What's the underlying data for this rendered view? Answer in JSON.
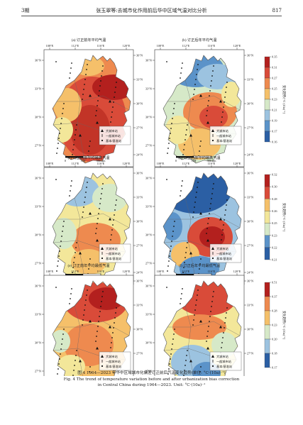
{
  "header": {
    "issue": "3期",
    "title": "张玉翠等:去城市化作用前后华中区域气温对比分析",
    "page": "817"
  },
  "panels": [
    {
      "label": "(a) 订正前年平均气温",
      "cbar": false
    },
    {
      "label": "(b) 订正后年平均气温",
      "cbar": true,
      "ticks": [
        "0.35",
        "0.31",
        "0.27",
        "0.25",
        "0.23",
        "0.21",
        "0.19",
        "0.17",
        "0.16"
      ]
    },
    {
      "label": "(c) 订正前年平均最高气温",
      "cbar": false
    },
    {
      "label": "(d) 订正后年平均最高气温",
      "cbar": true,
      "ticks": [
        "0.32",
        "0.30",
        "0.28",
        "0.26",
        "0.25",
        "0.23",
        "0.22",
        "0.21"
      ]
    },
    {
      "label": "(e) 订正前年平均最低气温",
      "cbar": false
    },
    {
      "label": "(f) 订正后年平均最低气温",
      "cbar": true,
      "ticks": [
        "0.51",
        "0.37",
        "0.28",
        "0.23",
        "0.20",
        "0.18",
        "0.17"
      ]
    }
  ],
  "lon_ticks": [
    "108°E",
    "112°E",
    "116°E",
    "120°E"
  ],
  "lat_left": [
    "36°N",
    "33°N",
    "30°N",
    "27°N"
  ],
  "lat_right": [
    "36°N",
    "33°N",
    "30°N",
    "27°N",
    "24°N"
  ],
  "legend": [
    "大城市站",
    "一般城市站",
    "基本/基准站"
  ],
  "scale": [
    "0",
    "180",
    "360 km"
  ],
  "cbar_title": "变化趋势/[°C·(10a)⁻¹]",
  "colors": {
    "ramp": [
      "#2b5fa4",
      "#5b93c9",
      "#9cc3e0",
      "#d6e9c8",
      "#f3e79a",
      "#f5c06a",
      "#ee8a4f",
      "#d94b39",
      "#b3201e"
    ]
  },
  "caption": {
    "cn": "图 4    1964—2023 年华中区域城市化偏差订正前后气温变化趋势(单位: °C·(10a)⁻¹)",
    "en1": "Fig. 4    The trend of temperature variation before and after urbanization bias correction",
    "en2": "in Central China during 1964—2023. Unit: °C·(10a)⁻¹"
  }
}
